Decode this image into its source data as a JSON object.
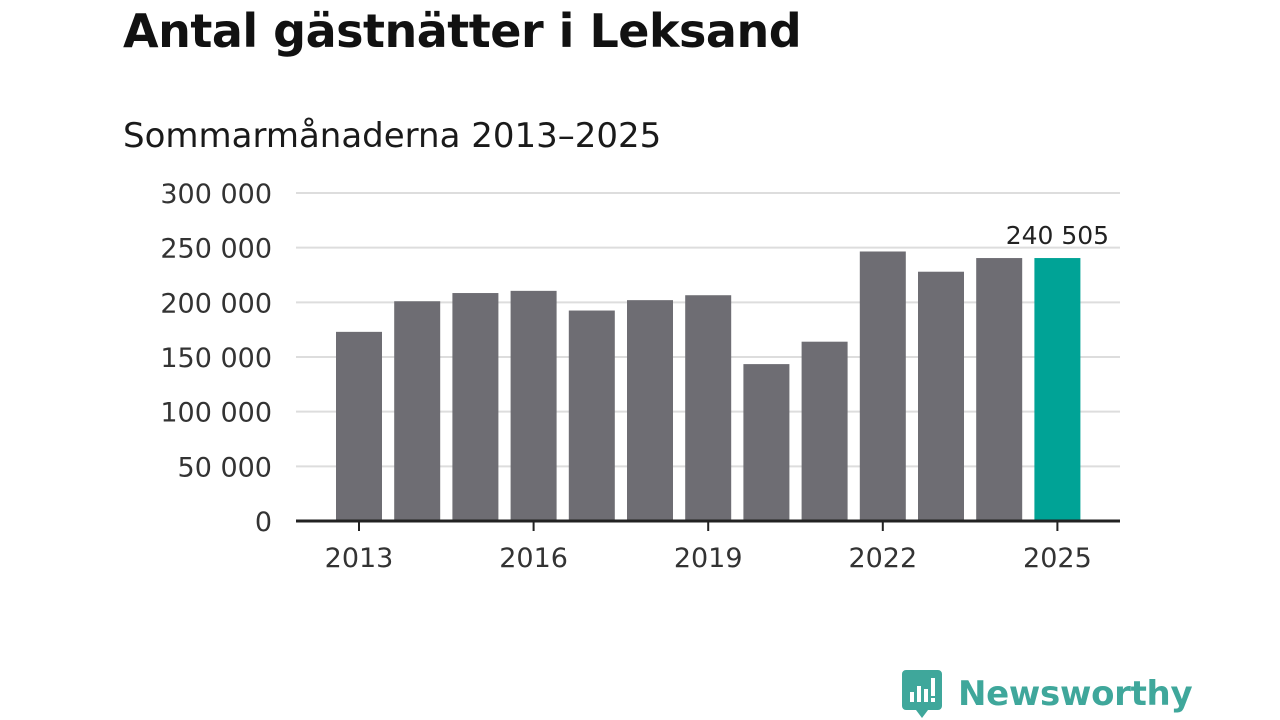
{
  "title": "Antal gästnätter i Leksand",
  "subtitle": "Sommarmånaderna 2013–2025",
  "brand": {
    "name": "Newsworthy",
    "color": "#3fa79b"
  },
  "colors": {
    "bar": "#6e6d73",
    "highlight": "#00a396",
    "grid": "#dddddd",
    "axis": "#222222"
  },
  "chart_data": {
    "type": "bar",
    "categories": [
      "2013",
      "2014",
      "2015",
      "2016",
      "2017",
      "2018",
      "2019",
      "2020",
      "2021",
      "2022",
      "2023",
      "2024",
      "2025"
    ],
    "values": [
      173000,
      201000,
      208500,
      210500,
      192500,
      202000,
      206500,
      143500,
      164000,
      246500,
      228000,
      240500,
      240505
    ],
    "xtick_labels": [
      "2013",
      "2016",
      "2019",
      "2022",
      "2025"
    ],
    "ytick_labels": [
      "0",
      "50 000",
      "100 000",
      "150 000",
      "200 000",
      "250 000",
      "300 000"
    ],
    "ylim": [
      0,
      300000
    ],
    "grid": true,
    "highlight_index": 12,
    "annotation": {
      "index": 12,
      "text": "240 505"
    }
  }
}
